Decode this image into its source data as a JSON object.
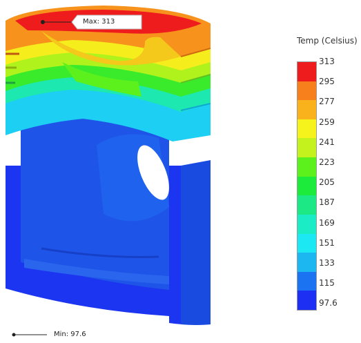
{
  "callouts": {
    "max_label": "Max: 313",
    "min_label": "Min: 97.6"
  },
  "legend": {
    "title": "Temp (Celsius)",
    "ticks": [
      "313",
      "295",
      "277",
      "259",
      "241",
      "223",
      "205",
      "187",
      "169",
      "151",
      "133",
      "115",
      "97.6"
    ],
    "band_colors": [
      "#ee1c1c",
      "#f77f1c",
      "#f9b11c",
      "#f5f21c",
      "#c3f21c",
      "#5cf01c",
      "#1ceb3c",
      "#1ce885",
      "#1cecc6",
      "#1ce8f3",
      "#1cb7f0",
      "#1c73f2",
      "#1c2ff2"
    ]
  }
}
